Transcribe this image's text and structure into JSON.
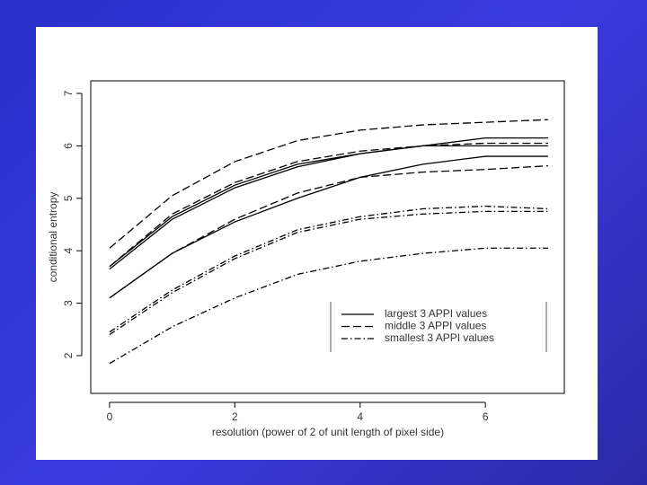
{
  "chart_data": {
    "type": "line",
    "x_label": "resolution (power of 2 of unit length of pixel side)",
    "y_label": "conditional entropy",
    "x": [
      0,
      1,
      2,
      3,
      4,
      5,
      6,
      7
    ],
    "xlim": [
      -0.3,
      7.26
    ],
    "ylim": [
      1.28,
      7.24
    ],
    "xticks": [
      0,
      2,
      4,
      6
    ],
    "yticks": [
      2,
      3,
      4,
      5,
      6,
      7
    ],
    "legend": "bottom-right",
    "color": "#000000",
    "groups": [
      {
        "name": "largest 3 APPI values",
        "dash": "solid",
        "lines": [
          [
            3.7,
            4.65,
            5.25,
            5.65,
            5.85,
            6.0,
            6.15,
            6.15
          ],
          [
            3.65,
            4.6,
            5.2,
            5.6,
            5.85,
            6.0,
            6.0,
            6.0
          ],
          [
            3.1,
            3.95,
            4.55,
            5.0,
            5.4,
            5.65,
            5.8,
            5.8
          ]
        ]
      },
      {
        "name": "middle 3 APPI values",
        "dash": "dashed",
        "lines": [
          [
            4.05,
            5.05,
            5.7,
            6.1,
            6.3,
            6.4,
            6.45,
            6.5
          ],
          [
            3.7,
            4.7,
            5.3,
            5.7,
            5.9,
            6.0,
            6.05,
            6.05
          ],
          [
            3.1,
            3.95,
            4.6,
            5.1,
            5.4,
            5.5,
            5.55,
            5.62
          ]
        ]
      },
      {
        "name": "smallest 3 APPI values",
        "dash": "dashdot",
        "lines": [
          [
            2.45,
            3.25,
            3.9,
            4.4,
            4.65,
            4.8,
            4.85,
            4.8
          ],
          [
            2.4,
            3.2,
            3.85,
            4.35,
            4.6,
            4.7,
            4.75,
            4.75
          ],
          [
            1.85,
            2.55,
            3.1,
            3.55,
            3.8,
            3.95,
            4.05,
            4.05
          ]
        ]
      }
    ]
  }
}
